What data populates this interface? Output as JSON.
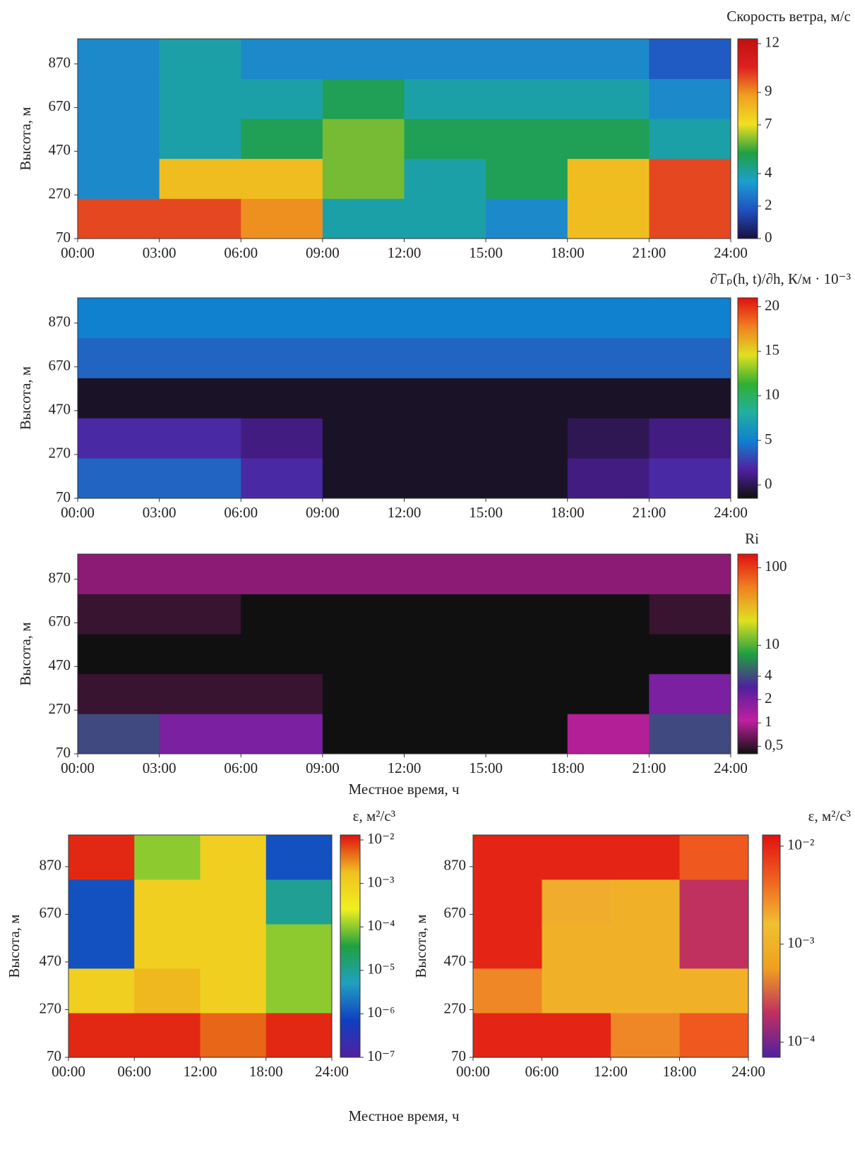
{
  "chart_data": [
    {
      "type": "heatmap",
      "title": "Скорость ветра, м/с",
      "ylabel": "Высота, м",
      "x": [
        1.5,
        4.5,
        7.5,
        10.5,
        13.5,
        16.5,
        19.5,
        22.5
      ],
      "y": [
        162,
        345,
        528,
        711,
        894
      ],
      "z": [
        [
          10,
          10,
          9,
          4,
          4,
          3,
          8,
          10
        ],
        [
          3,
          8,
          8,
          6,
          4,
          5,
          8,
          10
        ],
        [
          3,
          4,
          5,
          6,
          5,
          5,
          5,
          4
        ],
        [
          3,
          4,
          4,
          5,
          4,
          4,
          4,
          3
        ],
        [
          3,
          4,
          3,
          3,
          3,
          3,
          3,
          2
        ]
      ],
      "xlim": [
        0,
        24
      ],
      "ylim": [
        70,
        985
      ],
      "xticks": [
        {
          "value": 0,
          "label": "00:00"
        },
        {
          "value": 3,
          "label": "03:00"
        },
        {
          "value": 6,
          "label": "06:00"
        },
        {
          "value": 9,
          "label": "09:00"
        },
        {
          "value": 12,
          "label": "12:00"
        },
        {
          "value": 15,
          "label": "15:00"
        },
        {
          "value": 18,
          "label": "18:00"
        },
        {
          "value": 21,
          "label": "21:00"
        },
        {
          "value": 24,
          "label": "24:00"
        }
      ],
      "yticks": [
        70,
        270,
        470,
        670,
        870
      ],
      "zlim": [
        0,
        12.3
      ],
      "zticks": [
        0,
        2,
        4,
        7,
        9,
        12
      ],
      "zlog": false,
      "colorscale": [
        "#1a1040",
        "#2050c0",
        "#1aa0d0",
        "#20a040",
        "#f0e020",
        "#f0a020",
        "#e02020",
        "#c01010"
      ]
    },
    {
      "type": "heatmap",
      "title": "∂Tₚ(h, t)/∂h, К/м · 10⁻³",
      "ylabel": "Высота, м",
      "x": [
        1.5,
        4.5,
        7.5,
        10.5,
        13.5,
        16.5,
        19.5,
        22.5
      ],
      "y": [
        162,
        345,
        528,
        711,
        894
      ],
      "z": [
        [
          4,
          4,
          2,
          -1,
          -1,
          -1,
          1,
          2
        ],
        [
          2,
          2,
          1,
          -1,
          -1,
          -1,
          0,
          1
        ],
        [
          -1,
          -1,
          -1,
          -1,
          -1,
          -1,
          -1,
          -1
        ],
        [
          4,
          4,
          4,
          4,
          4,
          4,
          4,
          4
        ],
        [
          5,
          5,
          5,
          5,
          5,
          5,
          5,
          5
        ]
      ],
      "xlim": [
        0,
        24
      ],
      "ylim": [
        70,
        985
      ],
      "xticks": [
        {
          "value": 0,
          "label": "00:00"
        },
        {
          "value": 3,
          "label": "03:00"
        },
        {
          "value": 6,
          "label": "06:00"
        },
        {
          "value": 9,
          "label": "09:00"
        },
        {
          "value": 12,
          "label": "12:00"
        },
        {
          "value": 15,
          "label": "15:00"
        },
        {
          "value": 18,
          "label": "18:00"
        },
        {
          "value": 21,
          "label": "21:00"
        },
        {
          "value": 24,
          "label": "24:00"
        }
      ],
      "yticks": [
        70,
        270,
        470,
        670,
        870
      ],
      "zlim": [
        -1.5,
        21
      ],
      "zticks": [
        0,
        5,
        10,
        15,
        20
      ],
      "zlog": false,
      "colorscale": [
        "#101010",
        "#5020a0",
        "#1080d0",
        "#20b0a0",
        "#30b030",
        "#e0e020",
        "#f08020",
        "#e01010"
      ]
    },
    {
      "type": "heatmap",
      "title": "Ri",
      "ylabel": "Высота, м",
      "xlabel": "Местное время, ч",
      "x": [
        1.5,
        4.5,
        7.5,
        10.5,
        13.5,
        16.5,
        19.5,
        22.5
      ],
      "y": [
        162,
        345,
        528,
        711,
        894
      ],
      "z": [
        [
          4,
          2,
          2,
          0.4,
          0.4,
          0.4,
          1,
          4
        ],
        [
          0.5,
          0.5,
          0.5,
          0.4,
          0.4,
          0.4,
          0.4,
          2
        ],
        [
          0.4,
          0.4,
          0.4,
          0.4,
          0.4,
          0.4,
          0.4,
          0.4
        ],
        [
          0.5,
          0.5,
          0.4,
          0.4,
          0.4,
          0.4,
          0.4,
          0.5
        ],
        [
          0.8,
          0.8,
          0.8,
          0.8,
          0.8,
          0.8,
          0.8,
          0.8
        ]
      ],
      "xlim": [
        0,
        24
      ],
      "ylim": [
        70,
        985
      ],
      "xticks": [
        {
          "value": 0,
          "label": "00:00"
        },
        {
          "value": 3,
          "label": "03:00"
        },
        {
          "value": 6,
          "label": "06:00"
        },
        {
          "value": 9,
          "label": "09:00"
        },
        {
          "value": 12,
          "label": "12:00"
        },
        {
          "value": 15,
          "label": "15:00"
        },
        {
          "value": 18,
          "label": "18:00"
        },
        {
          "value": 21,
          "label": "21:00"
        },
        {
          "value": 24,
          "label": "24:00"
        }
      ],
      "yticks": [
        70,
        270,
        470,
        670,
        870
      ],
      "zlim": [
        0.4,
        150
      ],
      "zticks": [
        {
          "value": 0.5,
          "label": "0,5"
        },
        1,
        2,
        4,
        10,
        100
      ],
      "zlog": true,
      "colorscale": [
        "#101010",
        "#c020a0",
        "#5020a0",
        "#20a040",
        "#e0e020",
        "#f08020",
        "#e01010"
      ]
    },
    {
      "type": "heatmap",
      "title": "ε, м²/с³",
      "ylabel": "Высота, м",
      "xlabel": "Местное время, ч",
      "x": [
        3,
        9,
        15,
        21
      ],
      "y": [
        163,
        350,
        537,
        723,
        910
      ],
      "z": [
        [
          0.01,
          0.01,
          0.005,
          0.01
        ],
        [
          0.001,
          0.002,
          0.001,
          0.0001
        ],
        [
          1e-06,
          0.001,
          0.001,
          0.0001
        ],
        [
          1e-06,
          0.001,
          0.001,
          1e-05
        ],
        [
          0.01,
          0.0001,
          0.001,
          1e-06
        ]
      ],
      "xlim": [
        0,
        24
      ],
      "ylim": [
        70,
        1003
      ],
      "xticks": [
        {
          "value": 0,
          "label": "00:00"
        },
        {
          "value": 6,
          "label": "06:00"
        },
        {
          "value": 12,
          "label": "12:00"
        },
        {
          "value": 18,
          "label": "18:00"
        },
        {
          "value": 24,
          "label": "24:00"
        }
      ],
      "yticks": [
        70,
        270,
        470,
        670,
        870
      ],
      "zlim": [
        1e-07,
        0.013
      ],
      "zticks": [
        {
          "value": 0.01,
          "label": "10⁻²"
        },
        {
          "value": 0.001,
          "label": "10⁻³"
        },
        {
          "value": 0.0001,
          "label": "10⁻⁴"
        },
        {
          "value": 1e-05,
          "label": "10⁻⁵"
        },
        {
          "value": 1e-06,
          "label": "10⁻⁶"
        },
        {
          "value": 1e-07,
          "label": "10⁻⁷"
        }
      ],
      "zlog": true,
      "colorscale": [
        "#5020a0",
        "#1040c0",
        "#20a0c0",
        "#20a040",
        "#f0f020",
        "#f0c020",
        "#e01010"
      ]
    },
    {
      "type": "heatmap",
      "title": "ε, м²/с³",
      "ylabel": "Высота, м",
      "x": [
        3,
        9,
        15,
        21
      ],
      "y": [
        163,
        350,
        537,
        723,
        910
      ],
      "z": [
        [
          0.01,
          0.01,
          0.003,
          0.005
        ],
        [
          0.003,
          0.001,
          0.001,
          0.001
        ],
        [
          0.01,
          0.001,
          0.001,
          0.0002
        ],
        [
          0.01,
          0.002,
          0.001,
          0.0002
        ],
        [
          0.01,
          0.01,
          0.01,
          0.005
        ]
      ],
      "xlim": [
        0,
        24
      ],
      "ylim": [
        70,
        1003
      ],
      "xticks": [
        {
          "value": 0,
          "label": "00:00"
        },
        {
          "value": 6,
          "label": "06:00"
        },
        {
          "value": 12,
          "label": "12:00"
        },
        {
          "value": 18,
          "label": "18:00"
        },
        {
          "value": 24,
          "label": "24:00"
        }
      ],
      "yticks": [
        70,
        270,
        470,
        670,
        870
      ],
      "zlim": [
        7e-05,
        0.013
      ],
      "zticks": [
        {
          "value": 0.01,
          "label": "10⁻²"
        },
        {
          "value": 0.001,
          "label": "10⁻³"
        },
        {
          "value": 0.0001,
          "label": "10⁻⁴"
        }
      ],
      "zlog": true,
      "colorscale": [
        "#5020a0",
        "#c03060",
        "#f0a020",
        "#f0c030",
        "#f06020",
        "#e01010"
      ]
    }
  ]
}
